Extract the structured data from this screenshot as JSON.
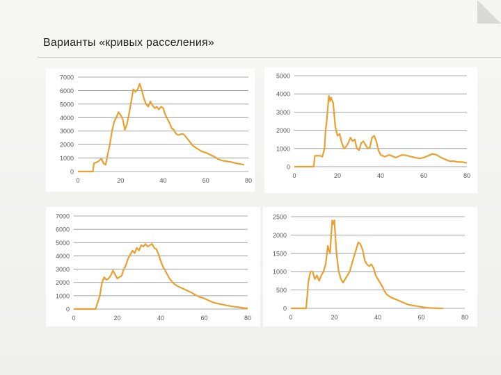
{
  "slide": {
    "title": "Варианты «кривых расселения»"
  },
  "colors": {
    "series": "#e8a030",
    "grid": "#8a8a8a",
    "axis_text": "#555555"
  },
  "chart_data": [
    {
      "type": "line",
      "title": "",
      "xlabel": "",
      "ylabel": "",
      "xlim": [
        0,
        80
      ],
      "ylim": [
        0,
        7000
      ],
      "x_ticks": [
        "0",
        "20",
        "40",
        "60",
        "80"
      ],
      "y_ticks": [
        "0",
        "1000",
        "2000",
        "3000",
        "4000",
        "5000",
        "6000",
        "7000"
      ],
      "grid": true,
      "series": [
        {
          "x": [
            0,
            7,
            7.5,
            8,
            9,
            10,
            11,
            12,
            13,
            14,
            15,
            16,
            17,
            18,
            19,
            20,
            21,
            22,
            23,
            24,
            25,
            26,
            27,
            28,
            29,
            30,
            31,
            32,
            33,
            34,
            35,
            36,
            37,
            38,
            39,
            40,
            41,
            42,
            43,
            44,
            45,
            46,
            47,
            48,
            49,
            50,
            52,
            54,
            56,
            58,
            60,
            62,
            64,
            66,
            68,
            70,
            72,
            74,
            76,
            78
          ],
          "y": [
            0,
            0,
            600,
            650,
            700,
            800,
            950,
            600,
            500,
            1300,
            2000,
            3000,
            3700,
            4000,
            4400,
            4200,
            3900,
            3100,
            3500,
            4300,
            5200,
            6100,
            5900,
            6100,
            6500,
            6000,
            5400,
            5000,
            4800,
            5200,
            4900,
            4700,
            4800,
            4600,
            4800,
            4700,
            4200,
            3900,
            3600,
            3200,
            3100,
            2800,
            2700,
            2750,
            2800,
            2700,
            2300,
            1900,
            1700,
            1500,
            1400,
            1250,
            1100,
            900,
            800,
            750,
            700,
            620,
            560,
            500
          ]
        }
      ]
    },
    {
      "type": "line",
      "title": "",
      "xlabel": "",
      "ylabel": "",
      "xlim": [
        0,
        80
      ],
      "ylim": [
        0,
        5000
      ],
      "x_ticks": [
        "0",
        "20",
        "40",
        "60",
        "80"
      ],
      "y_ticks": [
        "0",
        "1000",
        "2000",
        "3000",
        "4000",
        "5000"
      ],
      "grid": true,
      "series": [
        {
          "x": [
            0,
            9,
            9.5,
            12,
            13,
            14,
            14.5,
            15,
            16,
            16.5,
            17,
            18,
            19,
            20,
            21,
            22,
            23,
            24,
            25,
            26,
            27,
            28,
            29,
            30,
            31,
            32,
            33,
            34,
            35,
            36,
            37,
            38,
            39,
            40,
            41,
            42,
            43,
            44,
            45,
            46,
            47,
            48,
            50,
            52,
            54,
            56,
            58,
            60,
            62,
            64,
            66,
            68,
            70,
            72,
            74,
            76,
            78,
            80
          ],
          "y": [
            0,
            0,
            600,
            600,
            550,
            1000,
            2000,
            2500,
            3900,
            3600,
            3800,
            3500,
            2200,
            1700,
            1800,
            1300,
            1000,
            1100,
            1300,
            1600,
            1400,
            1500,
            1000,
            900,
            1300,
            1400,
            1200,
            1000,
            1050,
            1600,
            1700,
            1400,
            900,
            650,
            600,
            550,
            600,
            650,
            600,
            550,
            500,
            550,
            650,
            620,
            550,
            500,
            450,
            500,
            600,
            700,
            650,
            500,
            400,
            300,
            300,
            250,
            250,
            200
          ]
        }
      ]
    },
    {
      "type": "line",
      "title": "",
      "xlabel": "",
      "ylabel": "",
      "xlim": [
        0,
        80
      ],
      "ylim": [
        0,
        7000
      ],
      "x_ticks": [
        "0",
        "20",
        "40",
        "60",
        "80"
      ],
      "y_ticks": [
        "0",
        "1000",
        "2000",
        "3000",
        "4000",
        "5000",
        "6000",
        "7000"
      ],
      "grid": true,
      "series": [
        {
          "x": [
            0,
            10,
            11,
            12,
            13,
            14,
            15,
            16,
            17,
            18,
            19,
            20,
            21,
            22,
            23,
            24,
            25,
            26,
            27,
            28,
            29,
            30,
            31,
            32,
            33,
            34,
            35,
            36,
            37,
            38,
            39,
            40,
            41,
            42,
            43,
            44,
            45,
            46,
            48,
            50,
            52,
            54,
            56,
            58,
            60,
            62,
            64,
            66,
            68,
            70,
            72,
            74,
            76,
            78,
            80
          ],
          "y": [
            0,
            0,
            500,
            1000,
            2000,
            2400,
            2200,
            2300,
            2500,
            2900,
            2600,
            2300,
            2400,
            2500,
            3000,
            3300,
            3800,
            4100,
            4400,
            4200,
            4600,
            4400,
            4800,
            4700,
            4900,
            4700,
            4800,
            4900,
            4600,
            4500,
            4100,
            3600,
            3200,
            2900,
            2600,
            2300,
            2100,
            1900,
            1700,
            1550,
            1400,
            1250,
            1050,
            900,
            800,
            650,
            500,
            420,
            350,
            280,
            220,
            170,
            130,
            80,
            50
          ]
        }
      ]
    },
    {
      "type": "line",
      "title": "",
      "xlabel": "",
      "ylabel": "",
      "xlim": [
        0,
        80
      ],
      "ylim": [
        0,
        2500
      ],
      "x_ticks": [
        "0",
        "20",
        "40",
        "60",
        "80"
      ],
      "y_ticks": [
        "0",
        "500",
        "1000",
        "1500",
        "2000",
        "2500"
      ],
      "grid": true,
      "series": [
        {
          "x": [
            0,
            7,
            7.5,
            8,
            9,
            10,
            11,
            12,
            13,
            14,
            15,
            16,
            17,
            18,
            19,
            19.5,
            20,
            21,
            22,
            23,
            24,
            25,
            26,
            27,
            28,
            29,
            30,
            31,
            32,
            33,
            34,
            35,
            36,
            37,
            38,
            39,
            40,
            41,
            42,
            43,
            44,
            46,
            48,
            50,
            52,
            54,
            56,
            58,
            60,
            62,
            64,
            66,
            68,
            70
          ],
          "y": [
            0,
            0,
            300,
            700,
            1000,
            1000,
            800,
            900,
            750,
            900,
            1000,
            1200,
            1700,
            1500,
            2400,
            2300,
            2400,
            1500,
            1000,
            800,
            700,
            800,
            900,
            1000,
            1200,
            1400,
            1600,
            1800,
            1750,
            1600,
            1300,
            1200,
            1150,
            1200,
            1100,
            900,
            800,
            700,
            600,
            480,
            380,
            300,
            250,
            200,
            150,
            100,
            80,
            60,
            40,
            20,
            10,
            5,
            0,
            0
          ]
        }
      ]
    }
  ]
}
